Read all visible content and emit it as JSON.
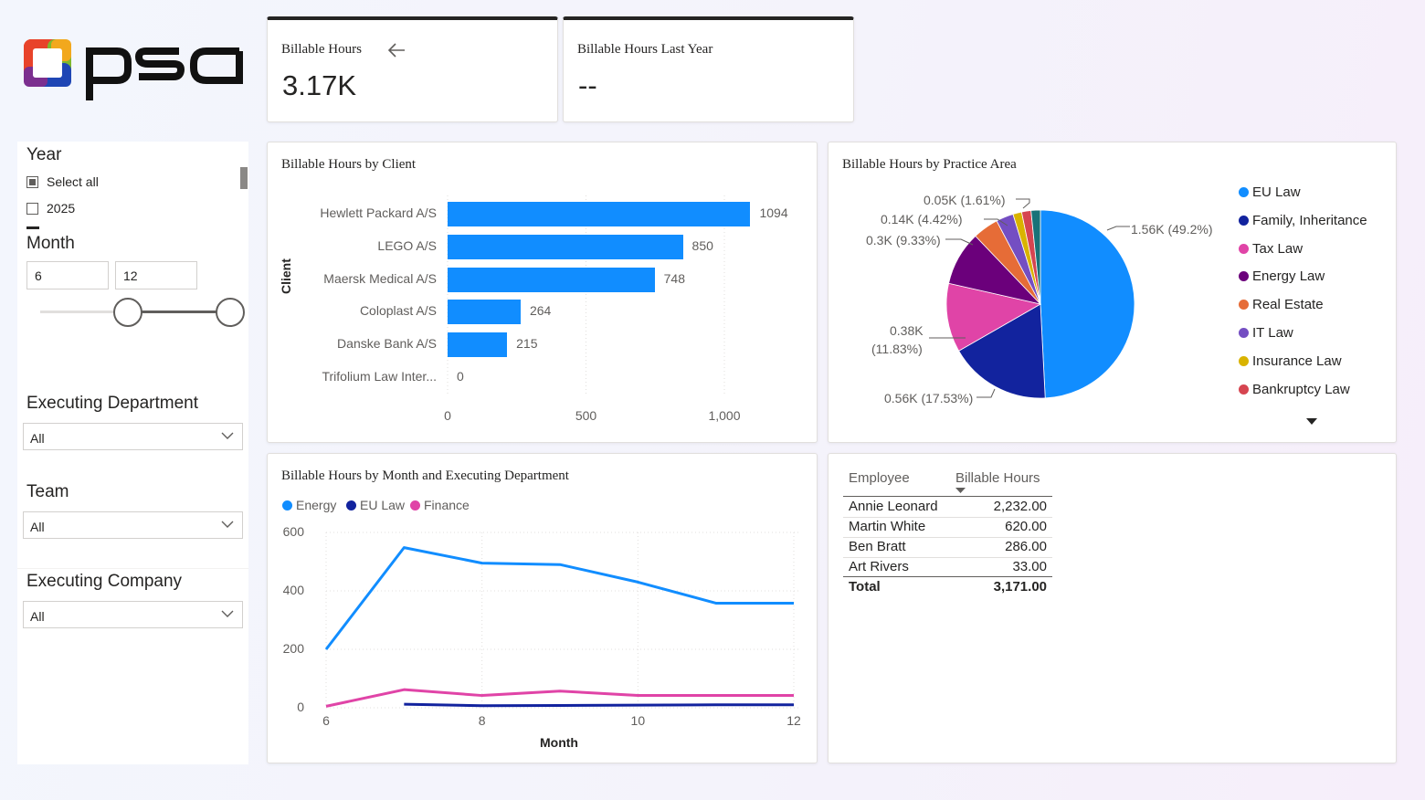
{
  "logo": {
    "text": "psa"
  },
  "kpis": [
    {
      "title": "Billable Hours",
      "value": "3.17K"
    },
    {
      "title": "Billable Hours Last Year",
      "value": "--"
    }
  ],
  "slicers": {
    "year": {
      "title": "Year",
      "items": [
        "Select all",
        "2025"
      ]
    },
    "month": {
      "title": "Month",
      "from": "6",
      "to": "12",
      "range_min": 1,
      "range_max": 12
    },
    "dept": {
      "title": "Executing Department",
      "value": "All"
    },
    "team": {
      "title": "Team",
      "value": "All"
    },
    "company": {
      "title": "Executing Company",
      "value": "All"
    }
  },
  "client_chart": {
    "title": "Billable Hours by Client",
    "chart_data": {
      "type": "bar",
      "orientation": "horizontal",
      "categories": [
        "Hewlett Packard A/S",
        "LEGO A/S",
        "Maersk Medical A/S",
        "Coloplast A/S",
        "Danske Bank A/S",
        "Trifolium Law Inter..."
      ],
      "values": [
        1094,
        850,
        748,
        264,
        215,
        0
      ],
      "ylabel": "Client",
      "xlim": [
        0,
        1300
      ],
      "x_ticks": [
        "0",
        "500",
        "1,000"
      ],
      "color": "#118dff"
    }
  },
  "practice_chart": {
    "title": "Billable Hours by Practice Area",
    "chart_data": {
      "type": "pie",
      "slices": [
        {
          "name": "EU Law",
          "value": 49.2,
          "label": "1.56K (49.2%)",
          "color": "#118dff"
        },
        {
          "name": "Family, Inheritance",
          "value": 17.53,
          "label": "0.56K (17.53%)",
          "color": "#12239e"
        },
        {
          "name": "Tax Law",
          "value": 11.83,
          "label": "0.38K (11.83%)",
          "color": "#e044a7"
        },
        {
          "name": "Energy Law",
          "value": 9.33,
          "label": "0.3K (9.33%)",
          "color": "#6b007b"
        },
        {
          "name": "Real Estate",
          "value": 4.42,
          "label": "0.14K (4.42%)",
          "color": "#e66c37"
        },
        {
          "name": "IT Law",
          "value": 3.0,
          "label": "",
          "color": "#744ec2"
        },
        {
          "name": "Insurance Law",
          "value": 1.5,
          "label": "",
          "color": "#d9b300"
        },
        {
          "name": "Bankruptcy Law",
          "value": 1.61,
          "label": "0.05K (1.61%)",
          "color": "#d64550"
        },
        {
          "name": "",
          "value": 1.6,
          "label": "",
          "color": "#197278"
        }
      ],
      "label_eu": "1.56K (49.2%)",
      "label_family": "0.56K (17.53%)",
      "label_tax_1": "0.38K",
      "label_tax_2": "(11.83%)",
      "label_energy": "0.3K (9.33%)",
      "label_real": "0.14K (4.42%)",
      "label_small": "0.05K (1.61%)",
      "legend": [
        "EU Law",
        "Family, Inheritance",
        "Tax Law",
        "Energy Law",
        "Real Estate",
        "IT Law",
        "Insurance Law",
        "Bankruptcy Law"
      ]
    }
  },
  "month_chart": {
    "title": "Billable Hours by Month and Executing Department",
    "chart_data": {
      "type": "line",
      "x": [
        6,
        7,
        8,
        9,
        10,
        11,
        12
      ],
      "series": [
        {
          "name": "Energy",
          "color": "#118dff",
          "values": [
            200,
            548,
            495,
            490,
            430,
            358,
            358
          ]
        },
        {
          "name": "EU Law",
          "color": "#12239e",
          "values": [
            null,
            12,
            7,
            8,
            9,
            10,
            10
          ]
        },
        {
          "name": "Finance",
          "color": "#e044a7",
          "values": [
            5,
            62,
            42,
            57,
            42,
            42,
            42
          ]
        }
      ],
      "xlabel": "Month",
      "ylim": [
        0,
        600
      ],
      "y_ticks": [
        "0",
        "200",
        "400",
        "600"
      ],
      "x_ticks": [
        "6",
        "8",
        "10",
        "12"
      ]
    }
  },
  "table": {
    "headers": [
      "Employee",
      "Billable Hours"
    ],
    "rows": [
      {
        "name": "Annie Leonard",
        "hours": "2,232.00"
      },
      {
        "name": "Martin White",
        "hours": "620.00"
      },
      {
        "name": "Ben Bratt",
        "hours": "286.00"
      },
      {
        "name": "Art Rivers",
        "hours": "33.00"
      }
    ],
    "total_label": "Total",
    "total_value": "3,171.00"
  },
  "colors": {
    "accent": "#118dff",
    "text": "#252423",
    "muted": "#605e5c"
  }
}
